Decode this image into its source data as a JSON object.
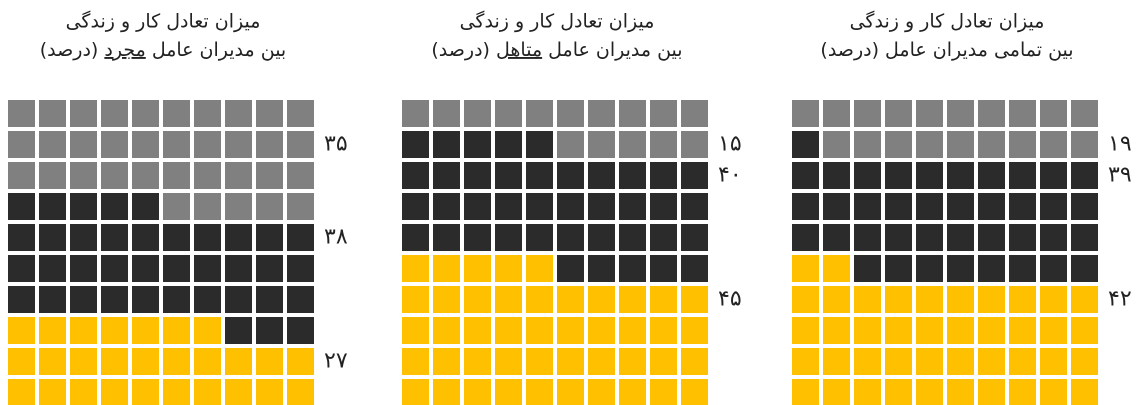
{
  "chart_data": [
    {
      "type": "waffle",
      "title": [
        "میزان تعادل کار و زندگی",
        "بین مدیران عامل",
        "مجرد",
        "(درصد)"
      ],
      "categories": [
        null,
        null,
        null
      ],
      "values": [
        35,
        38,
        27
      ],
      "value_labels": [
        "۳۵",
        "۳۸",
        "۲۷"
      ],
      "colors": [
        "#808080",
        "#2b2b2b",
        "#ffc000"
      ]
    },
    {
      "type": "waffle",
      "title": [
        "میزان تعادل کار و زندگی",
        "بین مدیران عامل",
        "متاهل",
        "(درصد)"
      ],
      "categories": [
        null,
        null,
        null
      ],
      "values": [
        15,
        40,
        45
      ],
      "value_labels": [
        "۱۵",
        "۴۰",
        "۴۵"
      ],
      "colors": [
        "#808080",
        "#2b2b2b",
        "#ffc000"
      ]
    },
    {
      "type": "waffle",
      "title": [
        "میزان تعادل کار و زندگی",
        "بین تمامی مدیران عامل",
        null,
        "(درصد)"
      ],
      "categories": [
        null,
        null,
        null
      ],
      "values": [
        19,
        39,
        42
      ],
      "value_labels": [
        "۱۹",
        "۳۹",
        "۴۲"
      ],
      "colors": [
        "#808080",
        "#2b2b2b",
        "#ffc000"
      ]
    }
  ]
}
